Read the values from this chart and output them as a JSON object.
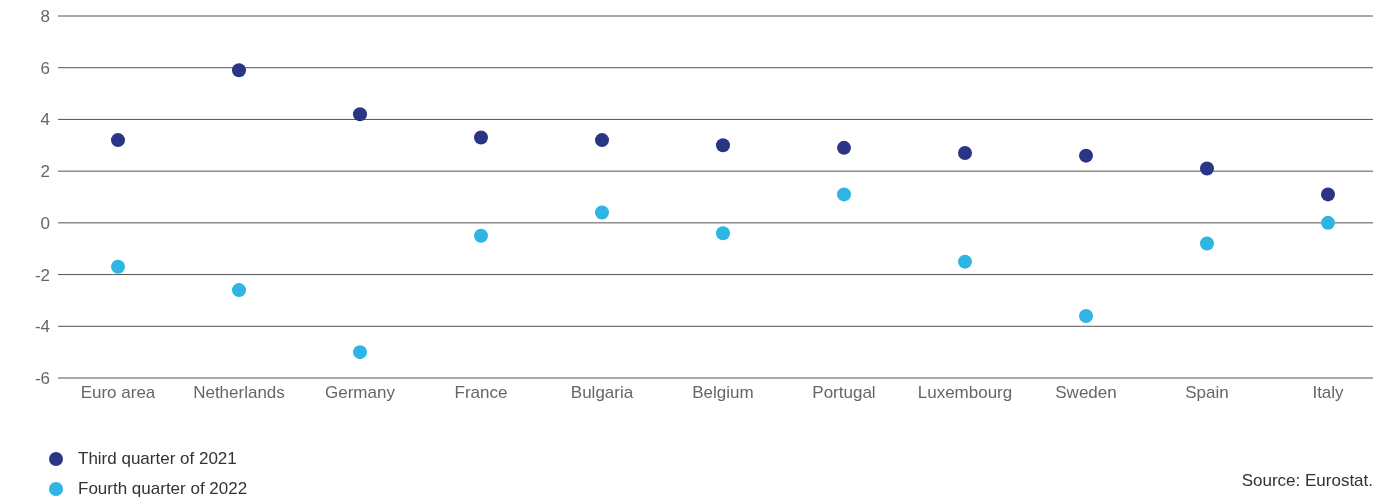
{
  "chart_data": {
    "type": "scatter",
    "categories": [
      "Euro area",
      "Netherlands",
      "Germany",
      "France",
      "Bulgaria",
      "Belgium",
      "Portugal",
      "Luxembourg",
      "Sweden",
      "Spain",
      "Italy"
    ],
    "series": [
      {
        "name": "Third quarter of 2021",
        "color": "#2b3585",
        "values": [
          3.2,
          5.9,
          4.2,
          3.3,
          3.2,
          3.0,
          2.9,
          2.7,
          2.6,
          2.1,
          1.1
        ]
      },
      {
        "name": "Fourth quarter of 2022",
        "color": "#2eb5e3",
        "values": [
          -1.7,
          -2.6,
          -5.0,
          -0.5,
          0.4,
          -0.4,
          1.1,
          -1.5,
          -3.6,
          -0.8,
          0.0
        ]
      }
    ],
    "ylim": [
      -6,
      8
    ],
    "yticks": [
      -6,
      -4,
      -2,
      0,
      2,
      4,
      6,
      8
    ],
    "grid": "y",
    "legend": "bottom left",
    "marker": "circle",
    "annotations": [
      "Source: Eurostat."
    ]
  }
}
